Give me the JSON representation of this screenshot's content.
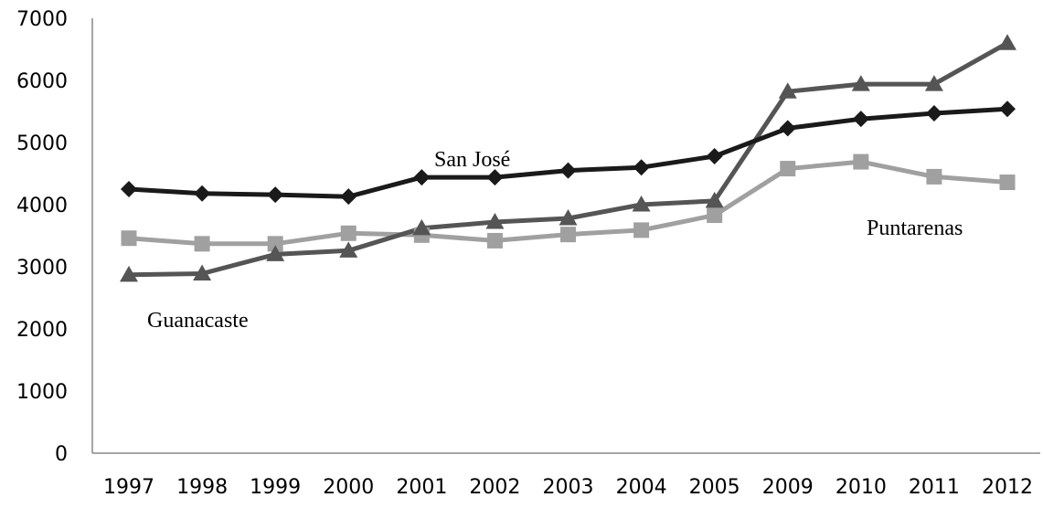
{
  "chart_data": {
    "type": "line",
    "title": "",
    "xlabel": "",
    "ylabel": "",
    "categories": [
      "1997",
      "1998",
      "1999",
      "2000",
      "2001",
      "2002",
      "2003",
      "2004",
      "2005",
      "2009",
      "2010",
      "2011",
      "2012"
    ],
    "ylim": [
      0,
      7000
    ],
    "yticks": [
      "0",
      "1000",
      "2000",
      "3000",
      "4000",
      "5000",
      "6000",
      "7000"
    ],
    "grid": false,
    "legend": "none",
    "series": [
      {
        "name": "San José",
        "marker": "diamond",
        "color": "#1a1a1a",
        "values": [
          4250,
          4180,
          4160,
          4130,
          4440,
          4440,
          4550,
          4600,
          4780,
          5230,
          5380,
          5470,
          5540
        ]
      },
      {
        "name": "Puntarenas",
        "marker": "square",
        "color": "#a0a0a0",
        "values": [
          3460,
          3370,
          3370,
          3540,
          3510,
          3420,
          3520,
          3590,
          3830,
          4580,
          4690,
          4450,
          4360
        ]
      },
      {
        "name": "Guanacaste",
        "marker": "triangle",
        "color": "#555555",
        "values": [
          2870,
          2890,
          3200,
          3260,
          3620,
          3720,
          3780,
          4000,
          4060,
          5820,
          5940,
          5940,
          6600
        ]
      }
    ]
  }
}
